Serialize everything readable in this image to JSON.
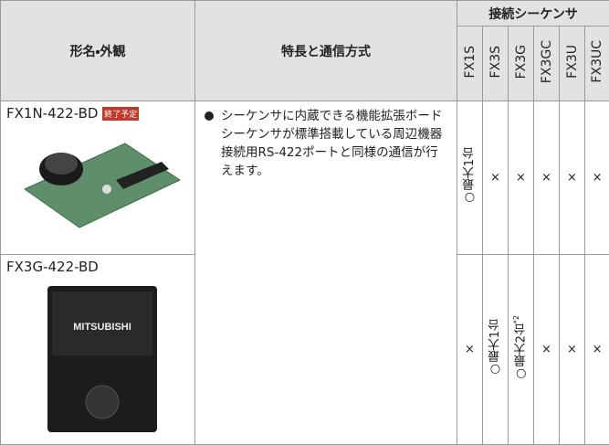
{
  "header": {
    "model": "形名・外観",
    "features": "特長と通信方式",
    "plc_group": "接続シーケンサ",
    "plcs": [
      "FX1S",
      "FX3S",
      "FX3G",
      "FX3GC",
      "FX3U",
      "FX3UC"
    ]
  },
  "rows": [
    {
      "model": "FX1N-422-BD",
      "badge": "終了予定",
      "features": [
        "シーケンサに内蔵できる機能拡張ボード",
        "シーケンサが標準搭載している周辺機器接続用RS-422ポートと同様の通信が行えます。"
      ],
      "compat": [
        "○最大1台",
        "×",
        "×",
        "×",
        "×",
        "×"
      ]
    },
    {
      "model": "FX3G-422-BD",
      "image_label": "MITSUBISHI",
      "compat": [
        "×",
        "○最大1台",
        "○最大2台",
        "×",
        "×",
        "×"
      ],
      "note_mark": "*2"
    }
  ]
}
